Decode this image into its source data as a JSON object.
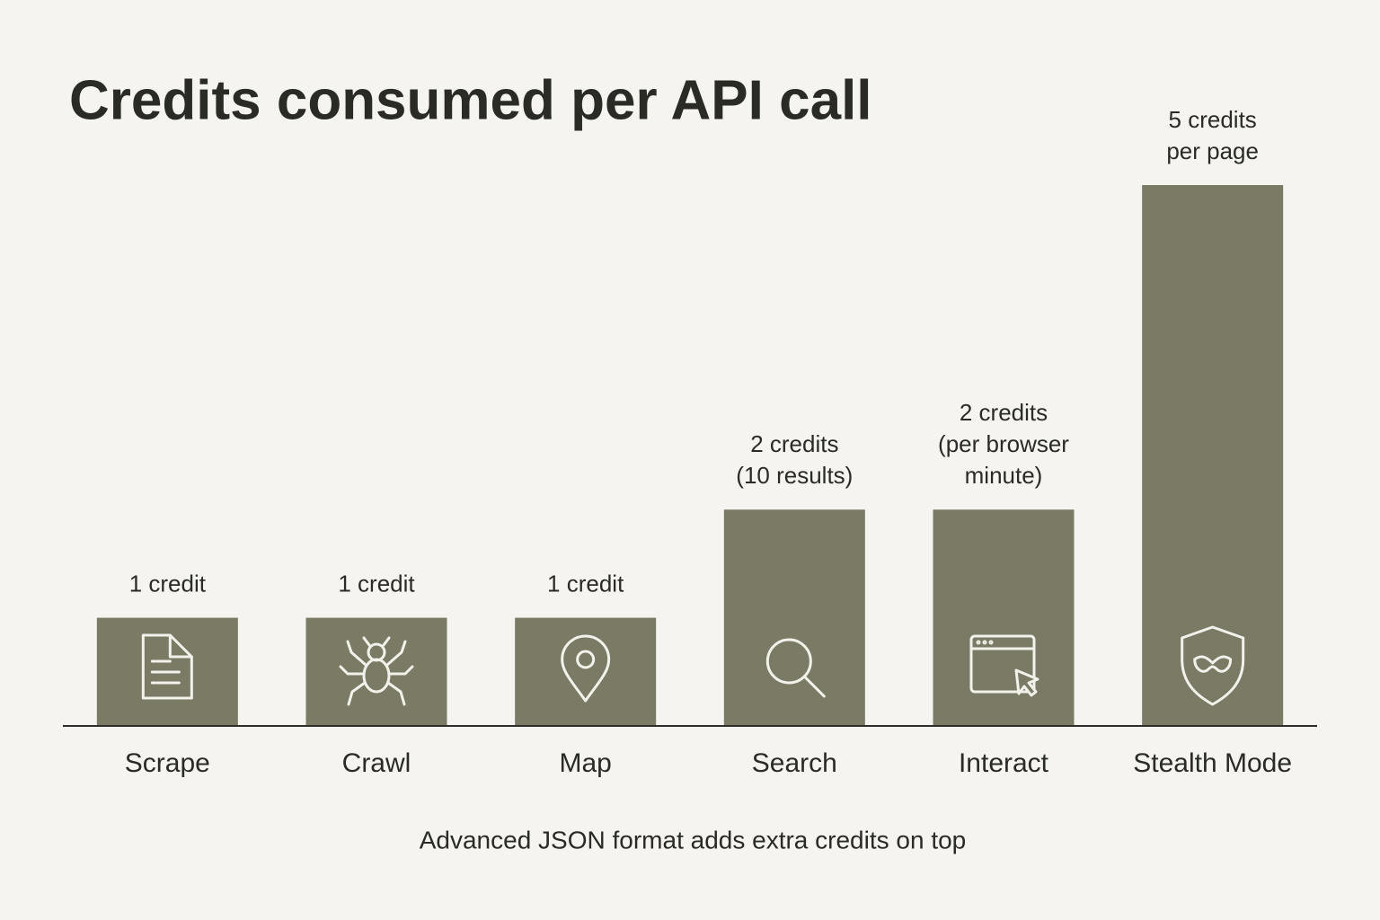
{
  "chart_data": {
    "type": "bar",
    "title": "Credits consumed per API call",
    "categories": [
      "Scrape",
      "Crawl",
      "Map",
      "Search",
      "Interact",
      "Stealth Mode"
    ],
    "values": [
      1,
      1,
      1,
      2,
      2,
      5
    ],
    "value_labels": [
      [
        "1 credit"
      ],
      [
        "1 credit"
      ],
      [
        "1 credit"
      ],
      [
        "2 credits",
        "(10 results)"
      ],
      [
        "2 credits",
        "(per browser",
        "minute)"
      ],
      [
        "5 credits",
        "per page"
      ]
    ],
    "color": "#7b7b65",
    "annotation": "Advanced JSON format adds extra credits on top"
  }
}
